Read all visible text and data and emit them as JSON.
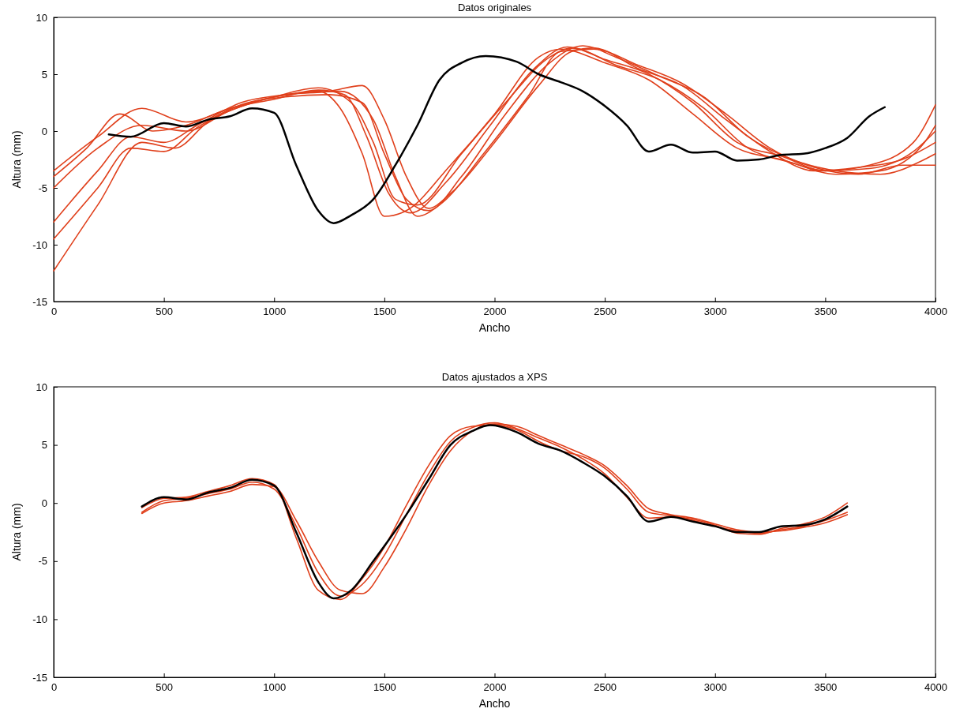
{
  "chart_data": [
    {
      "type": "line",
      "title": "Datos originales",
      "xlabel": "Ancho",
      "ylabel": "Altura (mm)",
      "xlim": [
        0,
        4000
      ],
      "ylim": [
        -15,
        10
      ],
      "xticks": [
        0,
        500,
        1000,
        1500,
        2000,
        2500,
        3000,
        3500,
        4000
      ],
      "yticks": [
        -15,
        -10,
        -5,
        0,
        5,
        10
      ],
      "grid": false,
      "marker": "none",
      "line_style": "solid",
      "series": [
        {
          "color": "#e0401c",
          "x": [
            0,
            200,
            400,
            600,
            800,
            1000,
            1200,
            1300,
            1400,
            1500,
            1600,
            1800,
            2000,
            2200,
            2300,
            2500,
            2700,
            2900,
            3100,
            3300,
            3500,
            3700,
            3900,
            4000
          ],
          "values": [
            -3.5,
            -0.5,
            2.0,
            0.8,
            2.0,
            3.0,
            3.5,
            2.0,
            -2,
            -7.5,
            -7,
            -3,
            1.5,
            6.5,
            7.2,
            6,
            4.5,
            1.5,
            -1.5,
            -2.5,
            -3.5,
            -3,
            -1,
            2.3
          ]
        },
        {
          "color": "#e0401c",
          "x": [
            0,
            200,
            400,
            600,
            800,
            1000,
            1200,
            1350,
            1450,
            1550,
            1650,
            1850,
            2050,
            2250,
            2350,
            2550,
            2750,
            2950,
            3150,
            3350,
            3550,
            3750,
            3950,
            4000
          ],
          "values": [
            -5,
            -1.5,
            0.5,
            0,
            1.8,
            3.0,
            3.8,
            2.5,
            -1,
            -6,
            -6.5,
            -2,
            2.5,
            6.5,
            7.3,
            5.8,
            4.5,
            2,
            -1.5,
            -2.8,
            -3.8,
            -3.5,
            -1,
            0.5
          ]
        },
        {
          "color": "#e0401c",
          "x": [
            0,
            200,
            350,
            500,
            650,
            850,
            1050,
            1250,
            1400,
            1500,
            1600,
            1700,
            1800,
            2000,
            2200,
            2350,
            2450,
            2650,
            2850,
            3050,
            3250,
            3450,
            3650,
            3850,
            4000
          ],
          "values": [
            -8,
            -3.5,
            -0.5,
            -1,
            0.5,
            2.5,
            3.2,
            3.5,
            4.0,
            1,
            -4,
            -6.8,
            -5.5,
            -1,
            4,
            7.0,
            7.3,
            5.5,
            4,
            1,
            -1.8,
            -3.5,
            -3.2,
            -2.5,
            -1
          ]
        },
        {
          "color": "#e0401c",
          "x": [
            0,
            200,
            350,
            500,
            650,
            850,
            1050,
            1250,
            1400,
            1500,
            1600,
            1700,
            1850,
            2050,
            2250,
            2400,
            2550,
            2750,
            2950,
            3150,
            3350,
            3550,
            3750,
            3950,
            4000
          ],
          "values": [
            -9.5,
            -5,
            -1.5,
            -1.8,
            0.3,
            2.3,
            3.0,
            3.2,
            2.5,
            -2,
            -6,
            -7,
            -4,
            1.5,
            6,
            7.5,
            6.5,
            4.8,
            3,
            -0.5,
            -2.5,
            -3.5,
            -3.8,
            -2.5,
            -2
          ]
        },
        {
          "color": "#e0401c",
          "x": [
            0,
            200,
            400,
            550,
            700,
            900,
            1100,
            1300,
            1450,
            1550,
            1650,
            1750,
            1950,
            2150,
            2300,
            2450,
            2650,
            2850,
            3050,
            3250,
            3450,
            3650,
            3850,
            4000
          ],
          "values": [
            -12.3,
            -6.5,
            -1.0,
            -1.5,
            0.8,
            2.5,
            3.3,
            3.5,
            1,
            -4,
            -7.5,
            -6.5,
            -2,
            3,
            7,
            7.2,
            5.8,
            4.2,
            1.5,
            -1.5,
            -3.2,
            -3.8,
            -3.0,
            -3
          ]
        },
        {
          "color": "#e0401c",
          "x": [
            0,
            150,
            300,
            450,
            600,
            800,
            1000,
            1200,
            1320,
            1420,
            1520,
            1620,
            1780,
            1980,
            2180,
            2330,
            2500,
            2700,
            2900,
            3100,
            3300,
            3500,
            3700,
            3900,
            4000
          ],
          "values": [
            -4,
            -1.5,
            1.5,
            0,
            0.5,
            2,
            2.8,
            3.6,
            3.2,
            -0.5,
            -5.5,
            -7.2,
            -4.5,
            0.5,
            5.5,
            7.4,
            6.3,
            5,
            2.5,
            -1,
            -2.2,
            -3.5,
            -3.3,
            -1.8,
            0
          ]
        },
        {
          "color": "#000000",
          "x": [
            250,
            350,
            500,
            600,
            700,
            800,
            900,
            1000,
            1100,
            1200,
            1270,
            1350,
            1450,
            1550,
            1650,
            1750,
            1850,
            1960,
            2100,
            2200,
            2300,
            2400,
            2500,
            2600,
            2700,
            2800,
            2900,
            3000,
            3100,
            3200,
            3300,
            3400,
            3500,
            3600,
            3700,
            3770
          ],
          "values": [
            -0.3,
            -0.5,
            0.7,
            0.4,
            1.0,
            1.3,
            2.0,
            1.6,
            -3,
            -7,
            -8.1,
            -7.4,
            -6,
            -3,
            0.5,
            4.5,
            6,
            6.6,
            6.1,
            5,
            4.3,
            3.5,
            2.2,
            0.5,
            -1.8,
            -1.2,
            -1.9,
            -1.8,
            -2.6,
            -2.5,
            -2.1,
            -2.0,
            -1.5,
            -0.6,
            1.3,
            2.1
          ]
        }
      ]
    },
    {
      "type": "line",
      "title": "Datos ajustados a XPS",
      "xlabel": "Ancho",
      "ylabel": "Altura (mm)",
      "xlim": [
        0,
        4000
      ],
      "ylim": [
        -15,
        10
      ],
      "xticks": [
        0,
        500,
        1000,
        1500,
        2000,
        2500,
        3000,
        3500,
        4000
      ],
      "yticks": [
        -15,
        -10,
        -5,
        0,
        5,
        10
      ],
      "grid": false,
      "marker": "none",
      "line_style": "solid",
      "series": [
        {
          "color": "#e0401c",
          "x": [
            400,
            500,
            600,
            700,
            800,
            900,
            1000,
            1100,
            1200,
            1300,
            1400,
            1500,
            1600,
            1700,
            1800,
            1900,
            2000,
            2100,
            2200,
            2300,
            2400,
            2500,
            2600,
            2700,
            2800,
            2900,
            3000,
            3100,
            3200,
            3300,
            3400,
            3500,
            3600
          ],
          "values": [
            -0.8,
            0.2,
            0.4,
            0.8,
            1.2,
            1.8,
            1.2,
            -2,
            -6,
            -8,
            -7,
            -4.5,
            -1,
            2.5,
            5.3,
            6.5,
            6.9,
            6.4,
            5.6,
            4.8,
            3.8,
            2.5,
            0.5,
            -1.3,
            -1.2,
            -1.5,
            -2.0,
            -2.4,
            -2.6,
            -2.3,
            -2.0,
            -1.5,
            -0.8
          ]
        },
        {
          "color": "#e0401c",
          "x": [
            400,
            500,
            600,
            700,
            800,
            900,
            1000,
            1100,
            1200,
            1300,
            1400,
            1500,
            1600,
            1700,
            1800,
            1900,
            2000,
            2100,
            2200,
            2300,
            2400,
            2500,
            2600,
            2700,
            2800,
            2900,
            3000,
            3100,
            3200,
            3300,
            3400,
            3500,
            3600
          ],
          "values": [
            -0.4,
            0.4,
            0.5,
            1.0,
            1.5,
            2.1,
            1.6,
            -3,
            -7.5,
            -8.3,
            -6.5,
            -3.8,
            -0.2,
            3.2,
            5.8,
            6.6,
            6.7,
            6.3,
            5.3,
            4.5,
            4.0,
            3.0,
            1.2,
            -0.8,
            -1.1,
            -1.4,
            -1.9,
            -2.6,
            -2.7,
            -2.2,
            -1.8,
            -1.2,
            0
          ]
        },
        {
          "color": "#e0401c",
          "x": [
            400,
            500,
            600,
            700,
            800,
            900,
            1000,
            1100,
            1200,
            1300,
            1400,
            1500,
            1600,
            1700,
            1800,
            1900,
            2000,
            2100,
            2200,
            2300,
            2400,
            2500,
            2600,
            2700,
            2800,
            2900,
            3000,
            3100,
            3200,
            3300,
            3400,
            3500,
            3600
          ],
          "values": [
            -0.9,
            0,
            0.2,
            0.6,
            1.0,
            1.6,
            1.4,
            -1.5,
            -5,
            -7.5,
            -7.8,
            -5.5,
            -2.2,
            1.5,
            4.5,
            6.2,
            6.8,
            6.6,
            5.8,
            5.0,
            4.2,
            3.2,
            1.5,
            -0.5,
            -1.0,
            -1.3,
            -1.8,
            -2.3,
            -2.5,
            -2.4,
            -2.1,
            -1.7,
            -1
          ]
        },
        {
          "color": "#000000",
          "x": [
            400,
            500,
            600,
            700,
            800,
            900,
            1000,
            1100,
            1200,
            1270,
            1350,
            1450,
            1600,
            1700,
            1800,
            1900,
            1980,
            2100,
            2200,
            2300,
            2400,
            2500,
            2600,
            2700,
            2800,
            2900,
            3000,
            3100,
            3200,
            3300,
            3400,
            3500,
            3600
          ],
          "values": [
            -0.3,
            0.5,
            0.3,
            0.9,
            1.3,
            2.0,
            1.5,
            -2.5,
            -6.8,
            -8.2,
            -7.5,
            -5,
            -1.0,
            2,
            5,
            6.2,
            6.7,
            6.1,
            5.1,
            4.5,
            3.5,
            2.3,
            0.6,
            -1.6,
            -1.2,
            -1.6,
            -2.0,
            -2.5,
            -2.5,
            -2.0,
            -1.9,
            -1.4,
            -0.3
          ]
        }
      ]
    }
  ]
}
